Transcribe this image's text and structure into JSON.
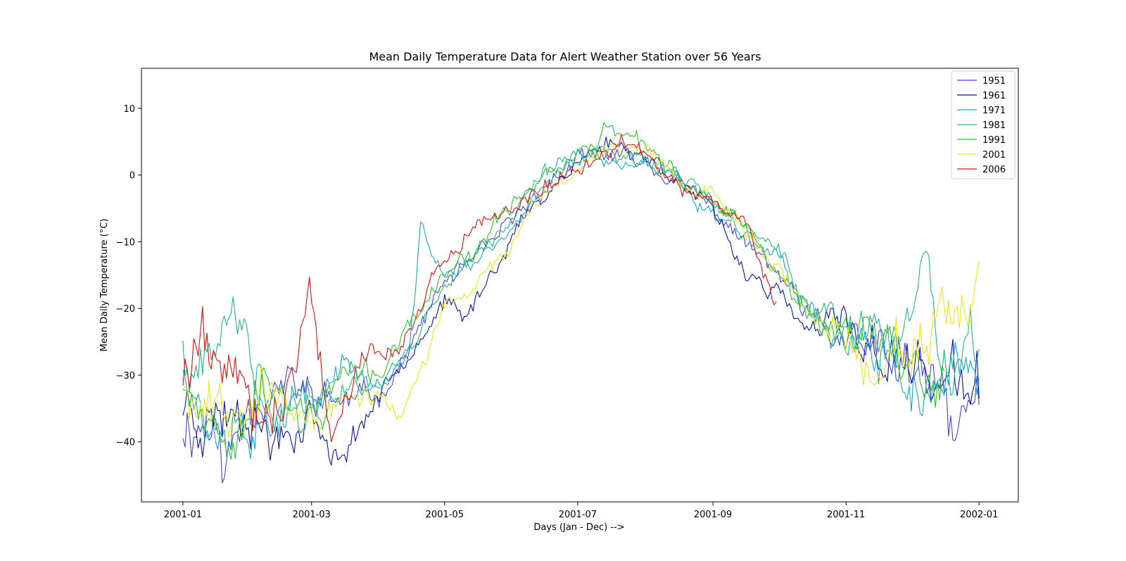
{
  "chart_data": {
    "type": "line",
    "title": "Mean Daily Temperature Data for Alert Weather Station over 56 Years",
    "xlabel": "Days (Jan - Dec) -->",
    "ylabel": "Mean Daily Temperature (°C)",
    "x_domain": [
      "2001-01-01",
      "2002-01-01"
    ],
    "xlim": [
      "2000-12-13",
      "2002-01-19"
    ],
    "ylim": [
      -49,
      16
    ],
    "x_ticks": [
      {
        "date": "2001-01-01",
        "label": "2001-01"
      },
      {
        "date": "2001-03-01",
        "label": "2001-03"
      },
      {
        "date": "2001-05-01",
        "label": "2001-05"
      },
      {
        "date": "2001-07-01",
        "label": "2001-07"
      },
      {
        "date": "2001-09-01",
        "label": "2001-09"
      },
      {
        "date": "2001-11-01",
        "label": "2001-11"
      },
      {
        "date": "2002-01-01",
        "label": "2002-01"
      }
    ],
    "y_ticks": [
      {
        "value": 10,
        "label": "10"
      },
      {
        "value": 0,
        "label": "0"
      },
      {
        "value": -10,
        "label": "−10"
      },
      {
        "value": -20,
        "label": "−20"
      },
      {
        "value": -30,
        "label": "−30"
      },
      {
        "value": -40,
        "label": "−40"
      }
    ],
    "grid": false,
    "legend_position": "top-right",
    "series": [
      {
        "name": "1951",
        "color": "#4444dd",
        "x_end": "2002-01-01",
        "seed": 11,
        "points": [
          [
            "2001-01-01",
            -37
          ],
          [
            "2001-01-15",
            -37
          ],
          [
            "2001-01-20",
            -45
          ],
          [
            "2001-02-01",
            -32
          ],
          [
            "2001-02-15",
            -32
          ],
          [
            "2001-03-01",
            -33
          ],
          [
            "2001-03-15",
            -34
          ],
          [
            "2001-04-01",
            -33
          ],
          [
            "2001-04-15",
            -26
          ],
          [
            "2001-05-01",
            -16
          ],
          [
            "2001-05-15",
            -13
          ],
          [
            "2001-06-01",
            -7
          ],
          [
            "2001-06-15",
            -2
          ],
          [
            "2001-07-01",
            2
          ],
          [
            "2001-07-15",
            3
          ],
          [
            "2001-08-01",
            2
          ],
          [
            "2001-08-15",
            -1
          ],
          [
            "2001-09-01",
            -5
          ],
          [
            "2001-09-15",
            -10
          ],
          [
            "2001-10-01",
            -15
          ],
          [
            "2001-10-15",
            -22
          ],
          [
            "2001-11-01",
            -25
          ],
          [
            "2001-11-15",
            -27
          ],
          [
            "2001-12-01",
            -30
          ],
          [
            "2001-12-15",
            -33
          ],
          [
            "2001-12-20",
            -40
          ],
          [
            "2002-01-01",
            -32
          ]
        ]
      },
      {
        "name": "1961",
        "color": "#0a14a8",
        "x_end": "2002-01-01",
        "seed": 23,
        "points": [
          [
            "2001-01-01",
            -34
          ],
          [
            "2001-01-15",
            -36
          ],
          [
            "2001-02-01",
            -33
          ],
          [
            "2001-02-10",
            -40
          ],
          [
            "2001-03-01",
            -35
          ],
          [
            "2001-03-10",
            -44
          ],
          [
            "2001-04-01",
            -33
          ],
          [
            "2001-04-15",
            -26
          ],
          [
            "2001-05-01",
            -19
          ],
          [
            "2001-05-10",
            -22
          ],
          [
            "2001-05-20",
            -16
          ],
          [
            "2001-06-01",
            -9
          ],
          [
            "2001-06-15",
            -3
          ],
          [
            "2001-07-01",
            2
          ],
          [
            "2001-07-15",
            5
          ],
          [
            "2001-08-01",
            3
          ],
          [
            "2001-08-15",
            0
          ],
          [
            "2001-09-01",
            -6
          ],
          [
            "2001-09-15",
            -14
          ],
          [
            "2001-10-01",
            -18
          ],
          [
            "2001-10-15",
            -24
          ],
          [
            "2001-11-01",
            -22
          ],
          [
            "2001-11-15",
            -27
          ],
          [
            "2001-12-01",
            -28
          ],
          [
            "2001-12-15",
            -31
          ],
          [
            "2002-01-01",
            -33
          ]
        ]
      },
      {
        "name": "1971",
        "color": "#18a8c0",
        "x_end": "2002-01-01",
        "seed": 37,
        "points": [
          [
            "2001-01-01",
            -24
          ],
          [
            "2001-01-10",
            -36
          ],
          [
            "2001-02-01",
            -36
          ],
          [
            "2001-02-15",
            -33
          ],
          [
            "2001-03-01",
            -36
          ],
          [
            "2001-03-15",
            -27
          ],
          [
            "2001-04-01",
            -32
          ],
          [
            "2001-04-15",
            -27
          ],
          [
            "2001-04-20",
            -8
          ],
          [
            "2001-05-01",
            -15
          ],
          [
            "2001-05-15",
            -13
          ],
          [
            "2001-06-01",
            -9
          ],
          [
            "2001-06-15",
            -1
          ],
          [
            "2001-07-01",
            3
          ],
          [
            "2001-07-15",
            2
          ],
          [
            "2001-08-01",
            1
          ],
          [
            "2001-08-15",
            0
          ],
          [
            "2001-09-01",
            -6
          ],
          [
            "2001-09-15",
            -8
          ],
          [
            "2001-10-01",
            -12
          ],
          [
            "2001-10-15",
            -20
          ],
          [
            "2001-11-01",
            -25
          ],
          [
            "2001-11-15",
            -28
          ],
          [
            "2001-12-01",
            -31
          ],
          [
            "2001-12-15",
            -35
          ],
          [
            "2002-01-01",
            -27
          ]
        ]
      },
      {
        "name": "1981",
        "color": "#22b888",
        "x_end": "2002-01-01",
        "seed": 41,
        "points": [
          [
            "2001-01-01",
            -30
          ],
          [
            "2001-01-15",
            -30
          ],
          [
            "2001-01-25",
            -20
          ],
          [
            "2001-02-01",
            -30
          ],
          [
            "2001-02-15",
            -34
          ],
          [
            "2001-03-01",
            -36
          ],
          [
            "2001-03-15",
            -32
          ],
          [
            "2001-04-01",
            -31
          ],
          [
            "2001-04-15",
            -26
          ],
          [
            "2001-05-01",
            -16
          ],
          [
            "2001-05-15",
            -12
          ],
          [
            "2001-06-01",
            -6
          ],
          [
            "2001-06-15",
            0
          ],
          [
            "2001-07-01",
            3
          ],
          [
            "2001-07-15",
            4
          ],
          [
            "2001-08-01",
            2
          ],
          [
            "2001-08-15",
            0
          ],
          [
            "2001-09-01",
            -4
          ],
          [
            "2001-09-15",
            -8
          ],
          [
            "2001-10-01",
            -11
          ],
          [
            "2001-10-15",
            -20
          ],
          [
            "2001-11-01",
            -24
          ],
          [
            "2001-11-15",
            -25
          ],
          [
            "2001-12-01",
            -23
          ],
          [
            "2001-12-08",
            -13
          ],
          [
            "2001-12-15",
            -32
          ],
          [
            "2002-01-01",
            -28
          ]
        ]
      },
      {
        "name": "1991",
        "color": "#2ec02e",
        "x_end": "2001-12-16",
        "seed": 53,
        "points": [
          [
            "2001-01-01",
            -29
          ],
          [
            "2001-01-15",
            -37
          ],
          [
            "2001-02-01",
            -33
          ],
          [
            "2001-02-15",
            -31
          ],
          [
            "2001-03-01",
            -36
          ],
          [
            "2001-03-15",
            -30
          ],
          [
            "2001-04-01",
            -30
          ],
          [
            "2001-04-15",
            -23
          ],
          [
            "2001-05-01",
            -15
          ],
          [
            "2001-05-15",
            -12
          ],
          [
            "2001-06-01",
            -4
          ],
          [
            "2001-06-15",
            0
          ],
          [
            "2001-07-01",
            3
          ],
          [
            "2001-07-15",
            7
          ],
          [
            "2001-08-01",
            4
          ],
          [
            "2001-08-15",
            0
          ],
          [
            "2001-09-01",
            -4
          ],
          [
            "2001-09-15",
            -7
          ],
          [
            "2001-10-01",
            -14
          ],
          [
            "2001-10-15",
            -21
          ],
          [
            "2001-11-01",
            -22
          ],
          [
            "2001-11-15",
            -24
          ],
          [
            "2001-12-01",
            -28
          ],
          [
            "2001-12-16",
            -31
          ]
        ]
      },
      {
        "name": "2001",
        "color": "#e8e81a",
        "x_end": "2002-01-01",
        "seed": 67,
        "points": [
          [
            "2001-01-01",
            -30
          ],
          [
            "2001-01-15",
            -35
          ],
          [
            "2001-02-01",
            -31
          ],
          [
            "2001-02-15",
            -35
          ],
          [
            "2001-03-01",
            -38
          ],
          [
            "2001-03-15",
            -33
          ],
          [
            "2001-04-01",
            -33
          ],
          [
            "2001-04-10",
            -36
          ],
          [
            "2001-04-20",
            -30
          ],
          [
            "2001-05-01",
            -20
          ],
          [
            "2001-05-15",
            -17
          ],
          [
            "2001-06-01",
            -10
          ],
          [
            "2001-06-15",
            -3
          ],
          [
            "2001-07-01",
            1
          ],
          [
            "2001-07-15",
            5
          ],
          [
            "2001-08-01",
            4
          ],
          [
            "2001-08-15",
            0
          ],
          [
            "2001-09-01",
            -3
          ],
          [
            "2001-09-15",
            -8
          ],
          [
            "2001-10-01",
            -14
          ],
          [
            "2001-10-15",
            -21
          ],
          [
            "2001-11-01",
            -24
          ],
          [
            "2001-11-15",
            -29
          ],
          [
            "2001-12-01",
            -25
          ],
          [
            "2001-12-15",
            -25
          ],
          [
            "2002-01-01",
            -20
          ]
        ]
      },
      {
        "name": "2006",
        "color": "#e01010",
        "x_end": "2001-09-30",
        "seed": 79,
        "points": [
          [
            "2001-01-01",
            -30
          ],
          [
            "2001-01-10",
            -24
          ],
          [
            "2001-02-01",
            -33
          ],
          [
            "2001-02-15",
            -35
          ],
          [
            "2001-02-28",
            -17
          ],
          [
            "2001-03-10",
            -38
          ],
          [
            "2001-03-25",
            -27
          ],
          [
            "2001-04-10",
            -26
          ],
          [
            "2001-04-25",
            -16
          ],
          [
            "2001-05-10",
            -10
          ],
          [
            "2001-05-25",
            -6
          ],
          [
            "2001-06-10",
            -3
          ],
          [
            "2001-06-25",
            0
          ],
          [
            "2001-07-10",
            2
          ],
          [
            "2001-07-20",
            6
          ],
          [
            "2001-08-01",
            3
          ],
          [
            "2001-08-15",
            -2
          ],
          [
            "2001-09-01",
            -4
          ],
          [
            "2001-09-15",
            -6
          ],
          [
            "2001-09-30",
            -20
          ]
        ]
      }
    ]
  }
}
